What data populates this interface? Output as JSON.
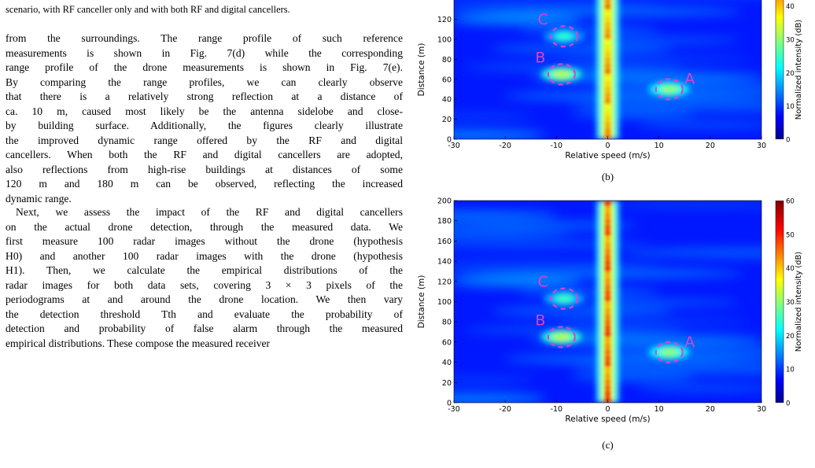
{
  "text": {
    "caption_fragment": "scenario, with RF canceller only and with both RF and digital cancellers.",
    "paragraph1": [
      "from the surroundings. The range profile of such reference",
      "measurements is shown in Fig. 7(d) while the corresponding",
      "range profile of the drone measurements is shown in Fig. 7(e).",
      "By comparing the range profiles, we can clearly observe",
      "that there is a relatively strong reflection at a distance of",
      "ca. 10 m, caused most likely be the antenna sidelobe and close-",
      "by building surface. Additionally, the figures clearly illustrate",
      "the improved dynamic range offered by the RF and digital",
      "cancellers. When both the RF and digital cancellers are adopted,",
      "also reflections from high-rise buildings at distances of some",
      "120 m and 180 m can be observed, reflecting the increased",
      "dynamic range."
    ],
    "paragraph2": [
      "Next, we assess the impact of the RF and digital cancellers",
      "on the actual drone detection, through the measured data. We",
      "first measure 100 radar images without the drone (hypothesis",
      "H0) and another 100 radar images with the drone (hypothesis",
      "H1). Then, we calculate the empirical distributions of the",
      "radar images for both data sets, covering 3 × 3 pixels of the",
      "periodograms at and around the drone location. We then vary",
      "the detection threshold Tth and evaluate the probability of",
      "detection and probability of false alarm through the measured",
      "empirical distributions. These compose the measured receiver"
    ]
  },
  "colors": {
    "annotation": "#e040c8",
    "colormap": "jet"
  },
  "chart_data": [
    {
      "type": "heatmap",
      "panel_label": "(b)",
      "xlabel": "Relative speed (m/s)",
      "ylabel": "Distance (m)",
      "colorbar_label": "Normalized intensity (dB)",
      "xlim": [
        -30,
        30
      ],
      "ylim": [
        0,
        200
      ],
      "visible_ylim": [
        0,
        130
      ],
      "x_ticks": [
        -30,
        -20,
        -10,
        0,
        10,
        20,
        30
      ],
      "y_ticks": [
        0,
        20,
        40,
        60,
        80,
        100,
        120
      ],
      "colorbar_range": [
        0,
        60
      ],
      "colorbar_ticks": [
        0,
        10,
        20,
        30,
        40
      ],
      "annotations": [
        {
          "label": "A",
          "x": 12,
          "y": 50
        },
        {
          "label": "B",
          "x": -9,
          "y": 65
        },
        {
          "label": "C",
          "x": -8.5,
          "y": 103
        }
      ],
      "features": {
        "zero_doppler_ridge": {
          "x": 0,
          "intensity_db": 50
        },
        "hotspots": [
          {
            "x": 12,
            "y": 50,
            "intensity_db": 30
          },
          {
            "x": -9,
            "y": 65,
            "intensity_db": 32
          },
          {
            "x": -8.5,
            "y": 103,
            "intensity_db": 24
          }
        ]
      }
    },
    {
      "type": "heatmap",
      "panel_label": "(c)",
      "xlabel": "Relative speed (m/s)",
      "ylabel": "Distance (m)",
      "colorbar_label": "Normalized intensity (dB)",
      "xlim": [
        -30,
        30
      ],
      "ylim": [
        0,
        200
      ],
      "x_ticks": [
        -30,
        -20,
        -10,
        0,
        10,
        20,
        30
      ],
      "y_ticks": [
        0,
        20,
        40,
        60,
        80,
        100,
        120,
        140,
        160,
        180,
        200
      ],
      "colorbar_range": [
        0,
        60
      ],
      "colorbar_ticks": [
        0,
        10,
        20,
        30,
        40,
        50,
        60
      ],
      "annotations": [
        {
          "label": "A",
          "x": 12,
          "y": 50
        },
        {
          "label": "B",
          "x": -9,
          "y": 65
        },
        {
          "label": "C",
          "x": -8.5,
          "y": 103
        }
      ],
      "features": {
        "zero_doppler_ridge": {
          "x": 0,
          "intensity_db": 55
        },
        "hotspots": [
          {
            "x": 12,
            "y": 50,
            "intensity_db": 30
          },
          {
            "x": -9,
            "y": 65,
            "intensity_db": 32
          },
          {
            "x": -8.5,
            "y": 103,
            "intensity_db": 25
          }
        ]
      }
    }
  ]
}
